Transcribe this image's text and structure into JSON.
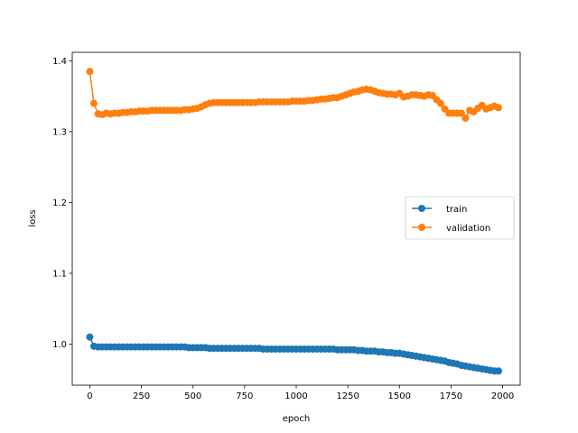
{
  "chart_data": {
    "type": "line",
    "xlabel": "epoch",
    "ylabel": "loss",
    "xlim": [
      -85,
      2085
    ],
    "ylim": [
      0.942,
      1.412
    ],
    "xticks": [
      0,
      250,
      500,
      750,
      1000,
      1250,
      1500,
      1750,
      2000
    ],
    "yticks": [
      1.0,
      1.1,
      1.2,
      1.3,
      1.4
    ],
    "ytick_labels": [
      "1.0",
      "1.1",
      "1.2",
      "1.3",
      "1.4"
    ],
    "grid": false,
    "legend": {
      "placement": "center-right",
      "entries": [
        "train",
        "validation"
      ]
    },
    "series": [
      {
        "name": "train",
        "color": "#1f77b4",
        "marker": "circle",
        "x": [
          0,
          20,
          40,
          60,
          80,
          100,
          120,
          140,
          160,
          180,
          200,
          220,
          240,
          260,
          280,
          300,
          320,
          340,
          360,
          380,
          400,
          420,
          440,
          460,
          480,
          500,
          520,
          540,
          560,
          580,
          600,
          620,
          640,
          660,
          680,
          700,
          720,
          740,
          760,
          780,
          800,
          820,
          840,
          860,
          880,
          900,
          920,
          940,
          960,
          980,
          1000,
          1020,
          1040,
          1060,
          1080,
          1100,
          1120,
          1140,
          1160,
          1180,
          1200,
          1220,
          1240,
          1260,
          1280,
          1300,
          1320,
          1340,
          1360,
          1380,
          1400,
          1420,
          1440,
          1460,
          1480,
          1500,
          1520,
          1540,
          1560,
          1580,
          1600,
          1620,
          1640,
          1660,
          1680,
          1700,
          1720,
          1740,
          1760,
          1780,
          1800,
          1820,
          1840,
          1860,
          1880,
          1900,
          1920,
          1940,
          1960,
          1980
        ],
        "y": [
          1.01,
          0.997,
          0.996,
          0.996,
          0.996,
          0.996,
          0.996,
          0.996,
          0.996,
          0.996,
          0.996,
          0.996,
          0.996,
          0.996,
          0.996,
          0.996,
          0.996,
          0.996,
          0.996,
          0.996,
          0.996,
          0.996,
          0.996,
          0.996,
          0.995,
          0.995,
          0.995,
          0.995,
          0.995,
          0.994,
          0.994,
          0.994,
          0.994,
          0.994,
          0.994,
          0.994,
          0.994,
          0.994,
          0.994,
          0.994,
          0.994,
          0.994,
          0.993,
          0.993,
          0.993,
          0.993,
          0.993,
          0.993,
          0.993,
          0.993,
          0.993,
          0.993,
          0.993,
          0.993,
          0.993,
          0.993,
          0.993,
          0.993,
          0.993,
          0.993,
          0.992,
          0.992,
          0.992,
          0.992,
          0.992,
          0.991,
          0.991,
          0.99,
          0.99,
          0.99,
          0.989,
          0.989,
          0.988,
          0.988,
          0.987,
          0.987,
          0.986,
          0.985,
          0.984,
          0.983,
          0.982,
          0.981,
          0.98,
          0.979,
          0.978,
          0.977,
          0.976,
          0.974,
          0.973,
          0.972,
          0.97,
          0.969,
          0.968,
          0.967,
          0.966,
          0.965,
          0.964,
          0.963,
          0.962,
          0.962
        ]
      },
      {
        "name": "validation",
        "color": "#ff7f0e",
        "marker": "circle",
        "x": [
          0,
          20,
          40,
          60,
          80,
          100,
          120,
          140,
          160,
          180,
          200,
          220,
          240,
          260,
          280,
          300,
          320,
          340,
          360,
          380,
          400,
          420,
          440,
          460,
          480,
          500,
          520,
          540,
          560,
          580,
          600,
          620,
          640,
          660,
          680,
          700,
          720,
          740,
          760,
          780,
          800,
          820,
          840,
          860,
          880,
          900,
          920,
          940,
          960,
          980,
          1000,
          1020,
          1040,
          1060,
          1080,
          1100,
          1120,
          1140,
          1160,
          1180,
          1200,
          1220,
          1240,
          1260,
          1280,
          1300,
          1320,
          1340,
          1360,
          1380,
          1400,
          1420,
          1440,
          1460,
          1480,
          1500,
          1520,
          1540,
          1560,
          1580,
          1600,
          1620,
          1640,
          1660,
          1680,
          1700,
          1720,
          1740,
          1760,
          1780,
          1800,
          1820,
          1840,
          1860,
          1880,
          1900,
          1920,
          1940,
          1960,
          1980
        ],
        "y": [
          1.385,
          1.34,
          1.325,
          1.324,
          1.326,
          1.325,
          1.326,
          1.326,
          1.327,
          1.327,
          1.328,
          1.328,
          1.329,
          1.329,
          1.329,
          1.33,
          1.33,
          1.33,
          1.33,
          1.33,
          1.33,
          1.33,
          1.33,
          1.331,
          1.331,
          1.332,
          1.333,
          1.335,
          1.338,
          1.34,
          1.341,
          1.341,
          1.341,
          1.341,
          1.341,
          1.341,
          1.341,
          1.341,
          1.341,
          1.341,
          1.341,
          1.342,
          1.342,
          1.342,
          1.342,
          1.342,
          1.342,
          1.342,
          1.342,
          1.343,
          1.343,
          1.343,
          1.343,
          1.344,
          1.344,
          1.345,
          1.346,
          1.346,
          1.347,
          1.348,
          1.348,
          1.35,
          1.352,
          1.354,
          1.356,
          1.357,
          1.359,
          1.36,
          1.359,
          1.357,
          1.355,
          1.354,
          1.353,
          1.353,
          1.352,
          1.354,
          1.349,
          1.35,
          1.352,
          1.352,
          1.351,
          1.35,
          1.352,
          1.351,
          1.345,
          1.34,
          1.332,
          1.326,
          1.326,
          1.326,
          1.326,
          1.319,
          1.33,
          1.328,
          1.333,
          1.337,
          1.332,
          1.334,
          1.336,
          1.334
        ]
      }
    ]
  }
}
